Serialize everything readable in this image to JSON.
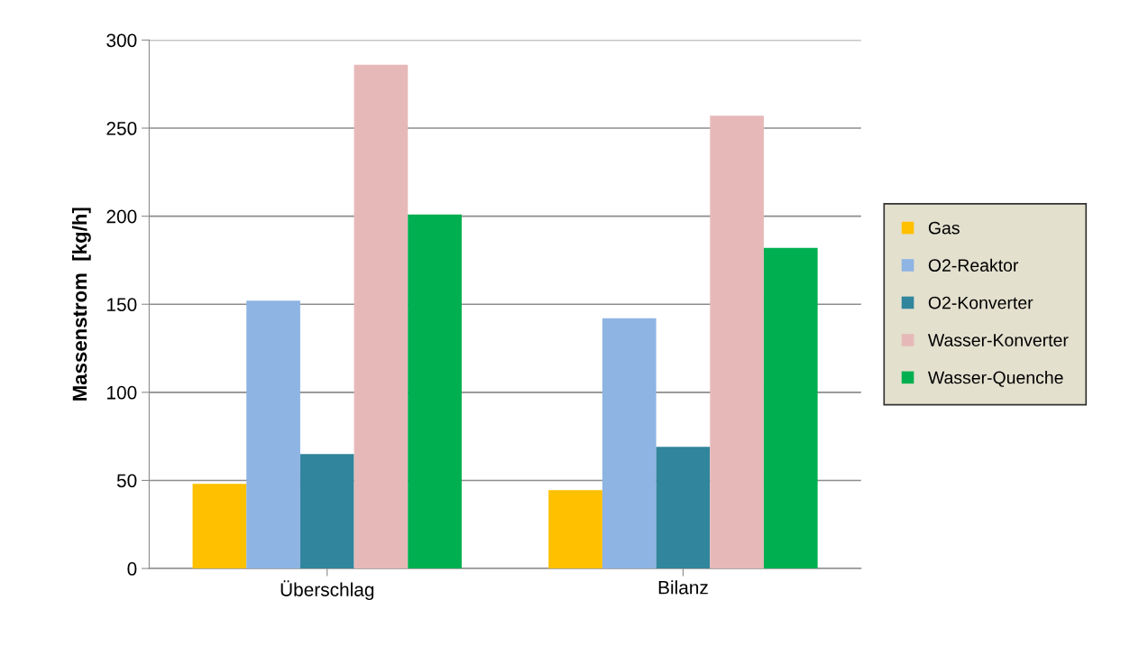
{
  "chart_data": {
    "type": "bar",
    "ylabel": "Massenstrom  [kg/h]",
    "categories": [
      "Überschlag",
      "Bilanz"
    ],
    "series": [
      {
        "name": "Gas",
        "color": "#ffc000",
        "values": [
          48,
          44.5
        ]
      },
      {
        "name": "O2-Reaktor",
        "color": "#8eb4e3",
        "values": [
          152,
          142
        ]
      },
      {
        "name": "O2-Konverter",
        "color": "#31859c",
        "values": [
          65,
          69
        ]
      },
      {
        "name": "Wasser-Konverter",
        "color": "#e6b9b8",
        "values": [
          286,
          257
        ]
      },
      {
        "name": "Wasser-Quenche",
        "color": "#00b050",
        "values": [
          201,
          182
        ]
      }
    ],
    "ylim": [
      0,
      300
    ],
    "yticks": [
      0,
      50,
      100,
      150,
      200,
      250,
      300
    ],
    "grid": "y",
    "legend": "right"
  }
}
